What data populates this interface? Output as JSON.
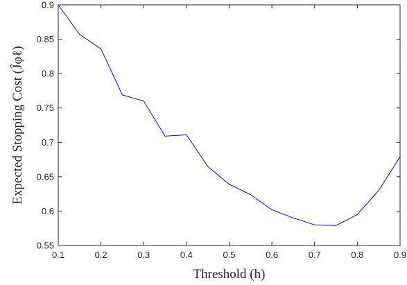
{
  "chart_data": {
    "type": "line",
    "title": "",
    "xlabel": "Threshold (h)",
    "ylabel": "Expected Stopping Cost (Ĵφℓ)",
    "xlim": [
      0.1,
      0.9
    ],
    "ylim": [
      0.55,
      0.9
    ],
    "xticks": [
      "0.1",
      "0.2",
      "0.3",
      "0.4",
      "0.5",
      "0.6",
      "0.7",
      "0.8",
      "0.9"
    ],
    "yticks": [
      "0.55",
      "0.6",
      "0.65",
      "0.7",
      "0.75",
      "0.8",
      "0.85",
      "0.9"
    ],
    "grid": false,
    "box": true,
    "line_color": "#0000ff",
    "series": [
      {
        "x": [
          0.1,
          0.15,
          0.2,
          0.25,
          0.3,
          0.35,
          0.4,
          0.45,
          0.5,
          0.55,
          0.6,
          0.65,
          0.7,
          0.75,
          0.8,
          0.85,
          0.9
        ],
        "y": [
          0.9,
          0.857,
          0.836,
          0.769,
          0.76,
          0.709,
          0.711,
          0.665,
          0.639,
          0.624,
          0.602,
          0.59,
          0.58,
          0.579,
          0.595,
          0.63,
          0.679
        ]
      }
    ]
  }
}
